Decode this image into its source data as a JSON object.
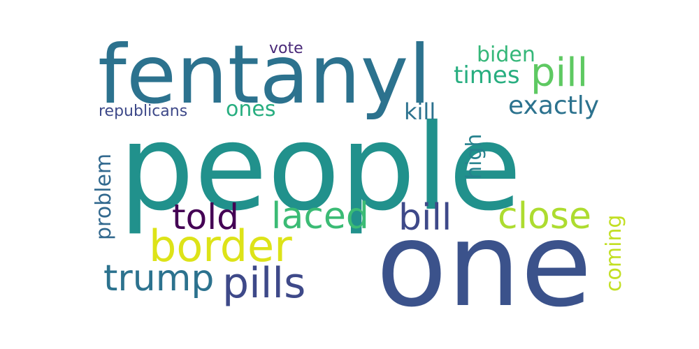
{
  "words": {
    "people": {
      "text": "people",
      "color": "#21918c"
    },
    "one": {
      "text": "one",
      "color": "#3b528b"
    },
    "fentanyl": {
      "text": "fentanyl",
      "color": "#2c728e"
    },
    "border": {
      "text": "border",
      "color": "#dde318"
    },
    "pills": {
      "text": "pills",
      "color": "#3e4989"
    },
    "trump": {
      "text": "trump",
      "color": "#2c728e"
    },
    "laced": {
      "text": "laced",
      "color": "#3bbb75"
    },
    "bill": {
      "text": "bill",
      "color": "#3e4989"
    },
    "close": {
      "text": "close",
      "color": "#addc30"
    },
    "told": {
      "text": "told",
      "color": "#440154"
    },
    "pill": {
      "text": "pill",
      "color": "#5ec962"
    },
    "biden": {
      "text": "biden",
      "color": "#35b779"
    },
    "times": {
      "text": "times",
      "color": "#28ae80"
    },
    "exactly": {
      "text": "exactly",
      "color": "#2c728e"
    },
    "ones": {
      "text": "ones",
      "color": "#28ae80"
    },
    "kill": {
      "text": "kill",
      "color": "#2c728e"
    },
    "vote": {
      "text": "vote",
      "color": "#482878"
    },
    "republicans": {
      "text": "republicans",
      "color": "#3e4989"
    },
    "problem": {
      "text": "problem",
      "color": "#31688e"
    },
    "high": {
      "text": "high",
      "color": "#26828e"
    },
    "coming": {
      "text": "coming",
      "color": "#c2df23"
    }
  }
}
